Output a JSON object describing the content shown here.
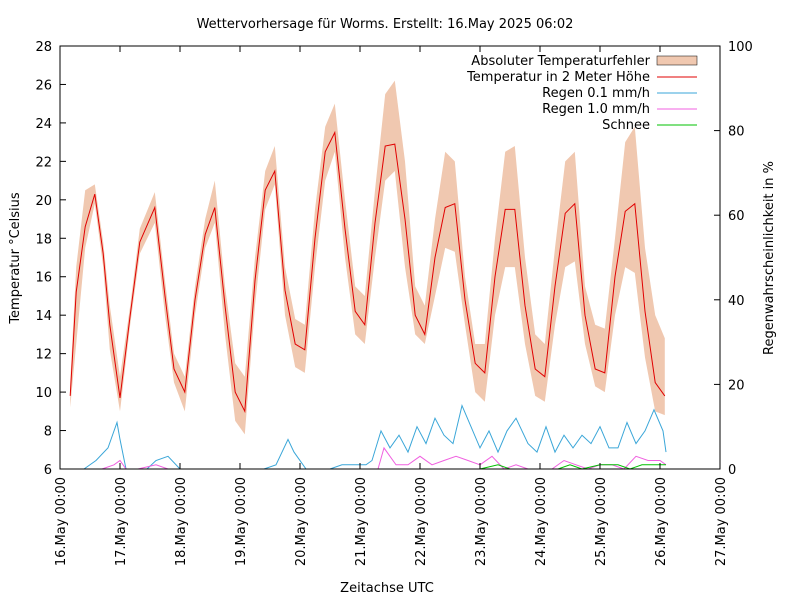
{
  "chart_data": {
    "type": "line",
    "title": "Wettervorhersage für Worms. Erstellt: 16.May 2025 06:02",
    "xlabel": "Zeitachse UTC",
    "ylabel": "Temperatur °Celsius",
    "y2label": "Regenwahrscheinlichkeit in %",
    "xlim_days": [
      0,
      11
    ],
    "ylim": [
      6,
      28
    ],
    "y2lim": [
      0,
      100
    ],
    "grid": false,
    "legend_position": "top-right",
    "x_tick_labels": [
      "16.May 00:00",
      "17.May 00:00",
      "18.May 00:00",
      "19.May 00:00",
      "20.May 00:00",
      "21.May 00:00",
      "22.May 00:00",
      "23.May 00:00",
      "24.May 00:00",
      "25.May 00:00",
      "26.May 00:00",
      "27.May 00:00"
    ],
    "y_tick_labels": [
      "6",
      "8",
      "10",
      "12",
      "14",
      "16",
      "18",
      "20",
      "22",
      "24",
      "26",
      "28"
    ],
    "y2_tick_labels": [
      "0",
      "20",
      "40",
      "60",
      "80",
      "100"
    ],
    "colors": {
      "band": "#f0c8b0",
      "temperature": "#e00000",
      "rain01": "#3aa6d8",
      "rain10": "#f060e0",
      "snow": "#00c000"
    },
    "series": [
      {
        "name": "Absoluter Temperaturfehler",
        "kind": "band",
        "x_days": [
          0.17,
          0.27,
          0.42,
          0.58,
          0.72,
          0.83,
          1.0,
          1.17,
          1.33,
          1.58,
          1.75,
          1.9,
          2.08,
          2.25,
          2.42,
          2.58,
          2.75,
          2.92,
          3.08,
          3.25,
          3.42,
          3.58,
          3.75,
          3.92,
          4.08,
          4.25,
          4.42,
          4.58,
          4.75,
          4.92,
          5.08,
          5.25,
          5.42,
          5.58,
          5.75,
          5.92,
          6.08,
          6.25,
          6.42,
          6.58,
          6.75,
          6.92,
          7.08,
          7.25,
          7.42,
          7.58,
          7.75,
          7.92,
          8.08,
          8.25,
          8.42,
          8.58,
          8.75,
          8.92,
          9.08,
          9.25,
          9.42,
          9.58,
          9.75,
          9.92,
          10.08
        ],
        "low": [
          9.2,
          12.5,
          17.5,
          19.8,
          16.5,
          12.2,
          9.0,
          13.5,
          17.2,
          18.8,
          14.0,
          10.5,
          9.0,
          14.0,
          17.5,
          18.8,
          13.0,
          8.5,
          7.8,
          14.5,
          19.5,
          20.8,
          14.0,
          11.3,
          11.0,
          16.5,
          21.0,
          22.5,
          17.0,
          13.0,
          12.5,
          17.0,
          21.0,
          21.5,
          16.5,
          13.0,
          12.5,
          15.0,
          17.5,
          17.3,
          13.5,
          10.0,
          9.5,
          14.0,
          16.5,
          16.5,
          12.5,
          9.8,
          9.5,
          13.5,
          16.5,
          16.8,
          12.5,
          10.3,
          10.0,
          14.0,
          16.5,
          16.2,
          11.8,
          9.0,
          8.8
        ],
        "high": [
          10.5,
          16.5,
          20.5,
          20.8,
          17.8,
          14.5,
          10.8,
          14.5,
          18.5,
          20.4,
          15.8,
          12.0,
          10.8,
          15.5,
          19.0,
          21.0,
          15.5,
          11.5,
          10.8,
          17.0,
          21.5,
          22.8,
          16.5,
          13.8,
          13.5,
          19.5,
          23.8,
          25.0,
          20.0,
          15.5,
          15.0,
          20.5,
          25.5,
          26.2,
          22.0,
          15.5,
          14.5,
          19.0,
          22.5,
          22.0,
          16.0,
          12.5,
          12.5,
          18.0,
          22.5,
          22.8,
          17.0,
          13.0,
          12.5,
          17.5,
          22.0,
          22.5,
          15.5,
          13.5,
          13.3,
          18.0,
          23.0,
          23.8,
          17.5,
          14.0,
          12.8
        ]
      },
      {
        "name": "Temperatur in 2 Meter Höhe",
        "kind": "line",
        "axis": "y",
        "x_days": [
          0.17,
          0.27,
          0.42,
          0.58,
          0.72,
          0.83,
          1.0,
          1.17,
          1.33,
          1.58,
          1.75,
          1.9,
          2.08,
          2.25,
          2.42,
          2.58,
          2.75,
          2.92,
          3.08,
          3.25,
          3.42,
          3.58,
          3.75,
          3.92,
          4.08,
          4.25,
          4.42,
          4.58,
          4.75,
          4.92,
          5.08,
          5.25,
          5.42,
          5.58,
          5.75,
          5.92,
          6.08,
          6.25,
          6.42,
          6.58,
          6.75,
          6.92,
          7.08,
          7.25,
          7.42,
          7.58,
          7.75,
          7.92,
          8.08,
          8.25,
          8.42,
          8.58,
          8.75,
          8.92,
          9.08,
          9.25,
          9.42,
          9.58,
          9.75,
          9.92,
          10.08
        ],
        "values": [
          9.8,
          15.2,
          18.6,
          20.3,
          17.2,
          13.5,
          9.7,
          14.0,
          17.8,
          19.6,
          15.0,
          11.2,
          10.0,
          14.8,
          18.2,
          19.6,
          14.5,
          10.0,
          9.0,
          15.8,
          20.5,
          21.5,
          15.3,
          12.5,
          12.2,
          18.0,
          22.5,
          23.5,
          18.5,
          14.2,
          13.5,
          18.8,
          22.8,
          22.9,
          19.0,
          14.0,
          13.0,
          17.0,
          19.6,
          19.8,
          14.8,
          11.5,
          11.0,
          16.0,
          19.5,
          19.5,
          14.5,
          11.2,
          10.8,
          15.5,
          19.3,
          19.8,
          14.0,
          11.2,
          11.0,
          16.0,
          19.4,
          19.8,
          14.2,
          10.5,
          9.8
        ]
      },
      {
        "name": "Regen 0.1 mm/h",
        "kind": "line",
        "axis": "y2",
        "x_days": [
          0.4,
          0.6,
          0.8,
          0.95,
          1.0,
          1.1,
          1.3,
          1.45,
          1.6,
          1.8,
          2.0,
          2.3,
          2.6,
          2.85,
          3.2,
          3.4,
          3.6,
          3.8,
          3.9,
          4.1,
          4.3,
          4.5,
          4.7,
          4.9,
          5.1,
          5.2,
          5.35,
          5.5,
          5.65,
          5.8,
          5.95,
          6.1,
          6.25,
          6.4,
          6.55,
          6.7,
          6.85,
          7.0,
          7.15,
          7.3,
          7.45,
          7.6,
          7.8,
          7.95,
          8.1,
          8.25,
          8.4,
          8.55,
          8.7,
          8.85,
          9.0,
          9.15,
          9.3,
          9.45,
          9.6,
          9.75,
          9.9,
          10.05,
          10.1
        ],
        "values": [
          0,
          2,
          5,
          11,
          7,
          0,
          0,
          0,
          2,
          3,
          0,
          0,
          0,
          0,
          0,
          0,
          1,
          7,
          4,
          0,
          0,
          0,
          1,
          1,
          1,
          2,
          9,
          5,
          8,
          4,
          10,
          6,
          12,
          8,
          6,
          15,
          10,
          5,
          9,
          4,
          9,
          12,
          6,
          4,
          10,
          4,
          8,
          5,
          8,
          6,
          10,
          5,
          5,
          11,
          6,
          9,
          14,
          9,
          4
        ],
        "note_values_percent": true
      },
      {
        "name": "Regen 1.0 mm/h",
        "kind": "line",
        "axis": "y2",
        "x_days": [
          0.7,
          0.9,
          1.0,
          1.1,
          1.3,
          1.6,
          1.8,
          2.2,
          5.0,
          5.3,
          5.4,
          5.6,
          5.8,
          6.0,
          6.2,
          6.4,
          6.6,
          6.8,
          7.0,
          7.2,
          7.4,
          7.6,
          7.8,
          8.0,
          8.2,
          8.4,
          8.6,
          8.8,
          9.0,
          9.2,
          9.4,
          9.6,
          9.8,
          10.0,
          10.1
        ],
        "values": [
          0,
          1,
          2,
          0,
          0,
          1,
          0,
          0,
          0,
          0,
          5,
          1,
          1,
          3,
          1,
          2,
          3,
          2,
          1,
          3,
          0,
          1,
          0,
          0,
          0,
          2,
          1,
          0,
          1,
          1,
          0,
          3,
          2,
          2,
          1
        ]
      },
      {
        "name": "Schnee",
        "kind": "line",
        "axis": "y2",
        "x_days": [
          7.0,
          7.3,
          7.5,
          7.7,
          8.0,
          8.3,
          8.5,
          8.7,
          9.0,
          9.3,
          9.5,
          9.7,
          10.0,
          10.1
        ],
        "values": [
          0,
          1,
          0,
          0,
          0,
          0,
          1,
          0,
          1,
          1,
          0,
          1,
          1,
          1
        ]
      }
    ]
  }
}
